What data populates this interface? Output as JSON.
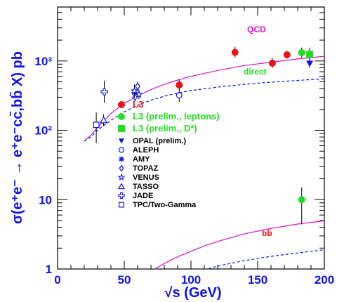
{
  "chart_data": {
    "type": "scatter",
    "xlabel": "√s (GeV)",
    "ylabel": "σ(e⁺e⁻ → e⁺e⁻cc̄,bb̄ X) pb",
    "xlim": [
      0,
      200
    ],
    "ylim": [
      1,
      6000
    ],
    "yscale": "log",
    "x_ticks": [
      "0",
      "50",
      "100",
      "150",
      "200"
    ],
    "y_ticks": [
      {
        "value": 1,
        "label": "1"
      },
      {
        "value": 10,
        "label": "10"
      },
      {
        "value": 100,
        "label": "10²"
      },
      {
        "value": 1000,
        "label": "10³"
      }
    ],
    "grid": false,
    "legend_position": "center-left",
    "series": [
      {
        "name": "L3",
        "marker": "circle-filled",
        "color": "#ee1111",
        "points": [
          {
            "x": 91.2,
            "y": 450,
            "ylo": 380,
            "yhi": 540
          },
          {
            "x": 133,
            "y": 1330,
            "ylo": 1120,
            "yhi": 1600
          },
          {
            "x": 161,
            "y": 930,
            "ylo": 790,
            "yhi": 1100
          },
          {
            "x": 172,
            "y": 1230,
            "ylo": 1080,
            "yhi": 1400
          }
        ]
      },
      {
        "name": "L3 (prelim., leptons)",
        "marker": "circle-filled",
        "color": "#22dd22",
        "points": [
          {
            "x": 183,
            "y": 1320,
            "ylo": 1120,
            "yhi": 1560
          },
          {
            "x": 183,
            "y": 10,
            "ylo": 4.4,
            "yhi": 15
          }
        ]
      },
      {
        "name": "L3 (prelim., D*)",
        "marker": "square-filled",
        "color": "#22dd22",
        "points": [
          {
            "x": 189,
            "y": 1250,
            "ylo": 1030,
            "yhi": 1560
          }
        ]
      },
      {
        "name": "OPAL (prelim.)",
        "marker": "triangle-down-filled",
        "color": "#1010ee",
        "points": [
          {
            "x": 189,
            "y": 920,
            "ylo": 800,
            "yhi": 1080
          }
        ]
      },
      {
        "name": "ALEPH",
        "marker": "circle-open",
        "color": "#1010ee",
        "points": [
          {
            "x": 91.2,
            "y": 320,
            "ylo": 255,
            "yhi": 400
          }
        ]
      },
      {
        "name": "AMY",
        "marker": "star-asterisk",
        "color": "#1010ee",
        "points": [
          {
            "x": 57.8,
            "y": 350,
            "ylo": 300,
            "yhi": 400
          }
        ]
      },
      {
        "name": "TOPAZ",
        "marker": "diamond-open",
        "color": "#1010ee",
        "points": [
          {
            "x": 58,
            "y": 300,
            "ylo": 260,
            "yhi": 350
          },
          {
            "x": 60,
            "y": 430,
            "ylo": 370,
            "yhi": 500
          }
        ]
      },
      {
        "name": "VENUS",
        "marker": "star-open",
        "color": "#1010ee",
        "points": [
          {
            "x": 57.6,
            "y": 370,
            "ylo": 290,
            "yhi": 460
          },
          {
            "x": 61,
            "y": 330,
            "ylo": 280,
            "yhi": 390
          }
        ]
      },
      {
        "name": "TASSO",
        "marker": "triangle-up-open",
        "color": "#1010ee",
        "points": [
          {
            "x": 34.5,
            "y": 140,
            "ylo": 115,
            "yhi": 170
          }
        ]
      },
      {
        "name": "JADE",
        "marker": "cross-open",
        "color": "#1010ee",
        "points": [
          {
            "x": 35,
            "y": 360,
            "ylo": 250,
            "yhi": 520
          }
        ]
      },
      {
        "name": "TPC/Two-Gamma",
        "marker": "square-open",
        "color": "#1010ee",
        "points": [
          {
            "x": 29,
            "y": 120,
            "ylo": 65,
            "yhi": 180
          }
        ]
      }
    ],
    "curves": [
      {
        "label": "QCD",
        "style": "solid",
        "color": "#dd11cc",
        "label_color": "#dd11cc",
        "points": [
          [
            20,
            70
          ],
          [
            25,
            85
          ],
          [
            30,
            110
          ],
          [
            40,
            175
          ],
          [
            50,
            245
          ],
          [
            60,
            315
          ],
          [
            70,
            385
          ],
          [
            80,
            460
          ],
          [
            90,
            530
          ],
          [
            100,
            600
          ],
          [
            120,
            730
          ],
          [
            140,
            860
          ],
          [
            160,
            960
          ],
          [
            180,
            1070
          ],
          [
            200,
            1170
          ]
        ]
      },
      {
        "label": "direct",
        "style": "dashed",
        "color": "#1010ee",
        "label_color": "#22dd22",
        "points": [
          [
            20,
            70
          ],
          [
            25,
            80
          ],
          [
            30,
            100
          ],
          [
            40,
            140
          ],
          [
            50,
            185
          ],
          [
            60,
            230
          ],
          [
            70,
            272
          ],
          [
            80,
            310
          ],
          [
            90,
            345
          ],
          [
            100,
            375
          ],
          [
            120,
            420
          ],
          [
            140,
            460
          ],
          [
            160,
            495
          ],
          [
            180,
            525
          ],
          [
            200,
            555
          ]
        ]
      },
      {
        "label": "bb̄",
        "style": "solid",
        "color": "#dd11cc",
        "label_color": "#ee1111",
        "points": [
          [
            73,
            1
          ],
          [
            80,
            1.2
          ],
          [
            90,
            1.5
          ],
          [
            100,
            1.8
          ],
          [
            110,
            2.15
          ],
          [
            120,
            2.5
          ],
          [
            140,
            3.2
          ],
          [
            160,
            3.85
          ],
          [
            180,
            4.45
          ],
          [
            200,
            4.95
          ]
        ]
      },
      {
        "label": "",
        "style": "dashed",
        "color": "#1010ee",
        "label_color": "",
        "points": [
          [
            100,
            0.75
          ],
          [
            110,
            0.97
          ],
          [
            120,
            1.1
          ],
          [
            140,
            1.32
          ],
          [
            160,
            1.52
          ],
          [
            180,
            1.7
          ],
          [
            200,
            1.9
          ]
        ]
      }
    ]
  }
}
